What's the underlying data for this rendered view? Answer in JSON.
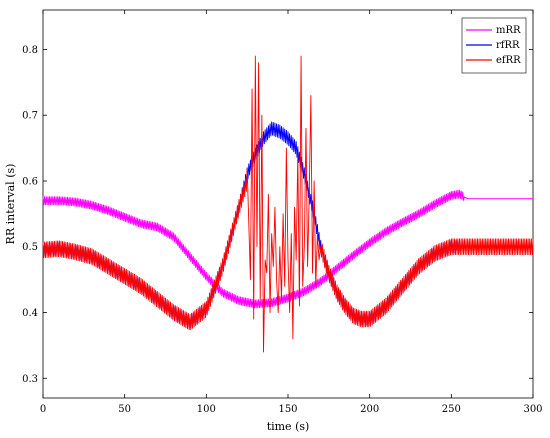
{
  "chart_data": {
    "type": "line",
    "xlabel": "time (s)",
    "ylabel": "RR interval (s)",
    "xlim": [
      0,
      300
    ],
    "ylim": [
      0.27,
      0.86
    ],
    "x_ticks": [
      0,
      50,
      100,
      150,
      200,
      250,
      300
    ],
    "y_ticks": [
      0.3,
      0.4,
      0.5,
      0.6,
      0.7,
      0.8
    ],
    "grid": false,
    "legend_position": "top-right",
    "series": [
      {
        "name": "mRR",
        "color": "#ff00ff",
        "sample_step_s": 1,
        "oscillation_amp": 0.006,
        "x": [
          0,
          10,
          20,
          30,
          40,
          50,
          60,
          70,
          80,
          90,
          100,
          110,
          120,
          130,
          140,
          150,
          160,
          170,
          180,
          190,
          200,
          210,
          220,
          230,
          240,
          250,
          255,
          260,
          270,
          280,
          290,
          300
        ],
        "values": [
          0.57,
          0.57,
          0.568,
          0.563,
          0.555,
          0.545,
          0.535,
          0.53,
          0.515,
          0.485,
          0.455,
          0.43,
          0.418,
          0.413,
          0.415,
          0.422,
          0.432,
          0.447,
          0.467,
          0.487,
          0.506,
          0.523,
          0.537,
          0.55,
          0.565,
          0.578,
          0.58,
          0.573,
          0.573,
          0.573,
          0.573,
          0.573
        ]
      },
      {
        "name": "rfRR",
        "color": "#0000ff",
        "sample_step_s": 1,
        "oscillation_amp": 0.01,
        "x": [
          0,
          10,
          20,
          30,
          40,
          50,
          60,
          70,
          80,
          90,
          100,
          110,
          120,
          125,
          130,
          135,
          140,
          145,
          150,
          155,
          160,
          165,
          170,
          175,
          180,
          185,
          190,
          195,
          200,
          210,
          220,
          230,
          240,
          250,
          255
        ],
        "values": [
          0.495,
          0.497,
          0.492,
          0.485,
          0.47,
          0.455,
          0.44,
          0.42,
          0.4,
          0.385,
          0.405,
          0.47,
          0.56,
          0.61,
          0.64,
          0.665,
          0.68,
          0.675,
          0.665,
          0.65,
          0.61,
          0.56,
          0.5,
          0.46,
          0.43,
          0.41,
          0.395,
          0.39,
          0.39,
          0.41,
          0.44,
          0.47,
          0.49,
          0.5,
          0.5
        ]
      },
      {
        "name": "efRR",
        "color": "#ff0000",
        "sample_step_s": 1,
        "oscillation_amp": 0.012,
        "x": [
          0,
          10,
          20,
          30,
          40,
          50,
          60,
          70,
          80,
          90,
          100,
          110,
          120,
          125,
          170,
          175,
          180,
          185,
          190,
          195,
          200,
          210,
          220,
          230,
          240,
          250,
          260,
          270,
          280,
          290,
          300
        ],
        "values": [
          0.495,
          0.497,
          0.492,
          0.485,
          0.47,
          0.455,
          0.44,
          0.42,
          0.4,
          0.385,
          0.405,
          0.47,
          0.56,
          0.6,
          0.5,
          0.46,
          0.43,
          0.41,
          0.395,
          0.39,
          0.39,
          0.41,
          0.44,
          0.47,
          0.49,
          0.5,
          0.5,
          0.5,
          0.5,
          0.5,
          0.5
        ],
        "burst_x": [
          125,
          127,
          128,
          129,
          130,
          131,
          132,
          133,
          134,
          135,
          136,
          137,
          138,
          139,
          140,
          141,
          142,
          143,
          144,
          145,
          146,
          147,
          148,
          149,
          150,
          151,
          152,
          153,
          154,
          155,
          156,
          157,
          158,
          159,
          160,
          161,
          162,
          163,
          164,
          165,
          166,
          167,
          168,
          169,
          170
        ],
        "burst_values": [
          0.62,
          0.45,
          0.74,
          0.39,
          0.79,
          0.5,
          0.78,
          0.42,
          0.7,
          0.34,
          0.48,
          0.46,
          0.58,
          0.4,
          0.52,
          0.47,
          0.56,
          0.45,
          0.4,
          0.5,
          0.42,
          0.55,
          0.44,
          0.65,
          0.48,
          0.4,
          0.52,
          0.36,
          0.56,
          0.48,
          0.64,
          0.41,
          0.79,
          0.44,
          0.5,
          0.68,
          0.47,
          0.58,
          0.73,
          0.46,
          0.6,
          0.44,
          0.52,
          0.48,
          0.5
        ]
      }
    ]
  }
}
